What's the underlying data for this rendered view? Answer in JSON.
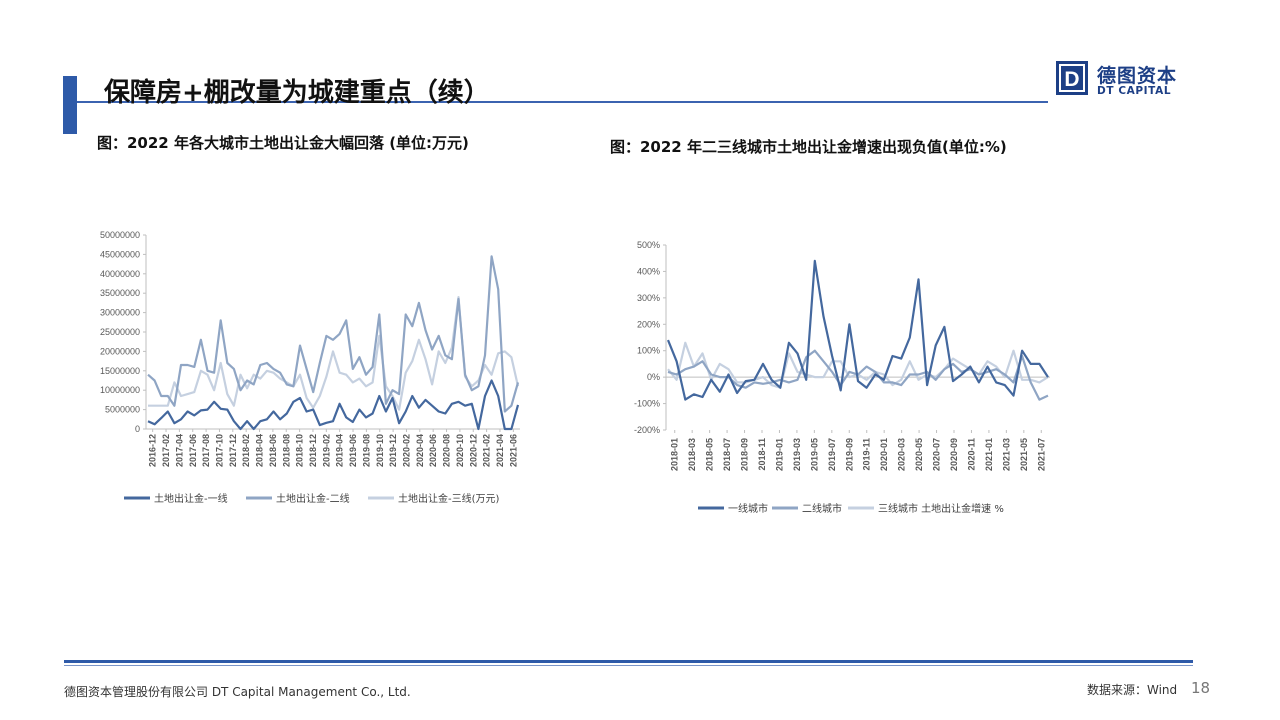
{
  "header": {
    "title": "保障房+棚改量为城建重点（续）"
  },
  "brand": {
    "logo_letter": "D",
    "name_cn": "德图资本",
    "name_en": "DT CAPITAL",
    "color": "#1d3f86",
    "accent": "#2e5aa8"
  },
  "left_panel": {
    "caption": "图：2022 年各大城市土地出让金大幅回落 (单位:万元)"
  },
  "right_panel": {
    "caption": "图：2022 年二三线城市土地出让金增速出现负值(单位:%)"
  },
  "footer": {
    "company": "德图资本管理股份有限公司  DT Capital Management  Co., Ltd.",
    "source": "数据来源：Wind",
    "page_number": "18"
  },
  "chart_data": [
    {
      "type": "line",
      "title": "",
      "xlabel": "",
      "ylabel": "",
      "ylim": [
        0,
        50000000
      ],
      "yticks": [
        "0",
        "5000000",
        "10000000",
        "15000000",
        "20000000",
        "25000000",
        "30000000",
        "35000000",
        "40000000",
        "45000000",
        "50000000"
      ],
      "legend_position": "bottom",
      "grid": false,
      "x_labels": [
        "2016-12",
        "2017-02",
        "2017-04",
        "2017-06",
        "2017-08",
        "2017-10",
        "2017-12",
        "2018-02",
        "2018-04",
        "2018-06",
        "2018-08",
        "2018-10",
        "2018-12",
        "2019-02",
        "2019-04",
        "2019-06",
        "2019-08",
        "2019-10",
        "2019-12",
        "2020-02",
        "2020-04",
        "2020-06",
        "2020-08",
        "2020-10",
        "2020-12",
        "2021-02",
        "2021-04",
        "2021-06"
      ],
      "series": [
        {
          "name": "土地出让金-一线",
          "color": "#44689e",
          "values": [
            2000000,
            1200000,
            2800000,
            4500000,
            1500000,
            2500000,
            4500000,
            3500000,
            4800000,
            5000000,
            7000000,
            5200000,
            5000000,
            2000000,
            0,
            2000000,
            0,
            2000000,
            2500000,
            4500000,
            2500000,
            4000000,
            7000000,
            8000000,
            4500000,
            5000000,
            1000000,
            1600000,
            2000000,
            6500000,
            3000000,
            1800000,
            5000000,
            3000000,
            4000000,
            8500000,
            4500000,
            8000000,
            1500000,
            4500000,
            8500000,
            5500000,
            7500000,
            6000000,
            4500000,
            4000000,
            6500000,
            7000000,
            6000000,
            6500000,
            0,
            8500000,
            12500000,
            8500000,
            0,
            0,
            6200000
          ]
        },
        {
          "name": "土地出让金-二线",
          "color": "#8fa5c4",
          "values": [
            14000000,
            12500000,
            8500000,
            8500000,
            6000000,
            16500000,
            16500000,
            16000000,
            23000000,
            15000000,
            14500000,
            28000000,
            17000000,
            15500000,
            10000000,
            12500000,
            11500000,
            16500000,
            17000000,
            15500000,
            14500000,
            11500000,
            11000000,
            21500000,
            15500000,
            9500000,
            17000000,
            24000000,
            23000000,
            24500000,
            28000000,
            15500000,
            18500000,
            14000000,
            16000000,
            29500000,
            6500000,
            10000000,
            9000000,
            29500000,
            26500000,
            32500000,
            25500000,
            20500000,
            24000000,
            19000000,
            18000000,
            33500000,
            14000000,
            10000000,
            11000000,
            19000000,
            44500000,
            36000000,
            4500000,
            6000000,
            12000000
          ]
        },
        {
          "name": "土地出让金-三线(万元)",
          "color": "#c5d0e0",
          "values": [
            6000000,
            6000000,
            6000000,
            6000000,
            12000000,
            8500000,
            9000000,
            9500000,
            15000000,
            14000000,
            10000000,
            17000000,
            9000000,
            6000000,
            14000000,
            10500000,
            14000000,
            13000000,
            15000000,
            14500000,
            13000000,
            12000000,
            11000000,
            14000000,
            8000000,
            5500000,
            8500000,
            13500000,
            20000000,
            14500000,
            14000000,
            12000000,
            13000000,
            11000000,
            12000000,
            24000000,
            11000000,
            8500000,
            5000000,
            14500000,
            17500000,
            23000000,
            18000000,
            11500000,
            20000000,
            17000000,
            21000000,
            34000000,
            13500000,
            11000000,
            12500000,
            16500000,
            14000000,
            19500000,
            20000000,
            18500000,
            11000000
          ]
        }
      ]
    },
    {
      "type": "line",
      "title": "",
      "xlabel": "",
      "ylabel": "",
      "ylim": [
        -200,
        500
      ],
      "yticks": [
        "-200%",
        "-100%",
        "0%",
        "100%",
        "200%",
        "300%",
        "400%",
        "500%"
      ],
      "legend_position": "bottom",
      "grid": false,
      "x_labels": [
        "2018-01",
        "2018-03",
        "2018-05",
        "2018-07",
        "2018-09",
        "2018-11",
        "2019-01",
        "2019-03",
        "2019-05",
        "2019-07",
        "2019-09",
        "2019-11",
        "2020-01",
        "2020-03",
        "2020-05",
        "2020-07",
        "2020-09",
        "2020-11",
        "2021-01",
        "2021-03",
        "2021-05",
        "2021-07"
      ],
      "series": [
        {
          "name": "一线城市",
          "color": "#44689e",
          "values": [
            140,
            60,
            -85,
            -65,
            -75,
            -10,
            -55,
            10,
            -60,
            -15,
            -10,
            50,
            -10,
            -40,
            130,
            90,
            -10,
            440,
            230,
            80,
            -50,
            200,
            -15,
            -40,
            10,
            -10,
            80,
            70,
            150,
            370,
            -30,
            120,
            190,
            -15,
            10,
            40,
            -20,
            40,
            -20,
            -30,
            -70,
            100,
            50,
            50,
            0
          ]
        },
        {
          "name": "二线城市",
          "color": "#8fa5c4",
          "values": [
            20,
            10,
            30,
            40,
            60,
            10,
            0,
            0,
            -30,
            -40,
            -20,
            -25,
            -20,
            -10,
            -20,
            -10,
            75,
            100,
            60,
            20,
            -30,
            20,
            10,
            40,
            20,
            -20,
            -20,
            -30,
            10,
            10,
            20,
            -10,
            30,
            50,
            20,
            30,
            10,
            20,
            30,
            10,
            -20,
            80,
            -20,
            -85,
            -70
          ]
        },
        {
          "name": "三线城市 土地出让金增速 %",
          "color": "#c5d0e0",
          "values": [
            30,
            -10,
            130,
            40,
            90,
            -10,
            50,
            30,
            -20,
            -20,
            -10,
            0,
            -30,
            -40,
            90,
            20,
            10,
            0,
            0,
            60,
            60,
            0,
            10,
            -10,
            20,
            10,
            -30,
            -10,
            60,
            -10,
            10,
            0,
            30,
            70,
            50,
            30,
            10,
            60,
            40,
            0,
            100,
            -10,
            -10,
            -20,
            0
          ]
        }
      ]
    }
  ]
}
